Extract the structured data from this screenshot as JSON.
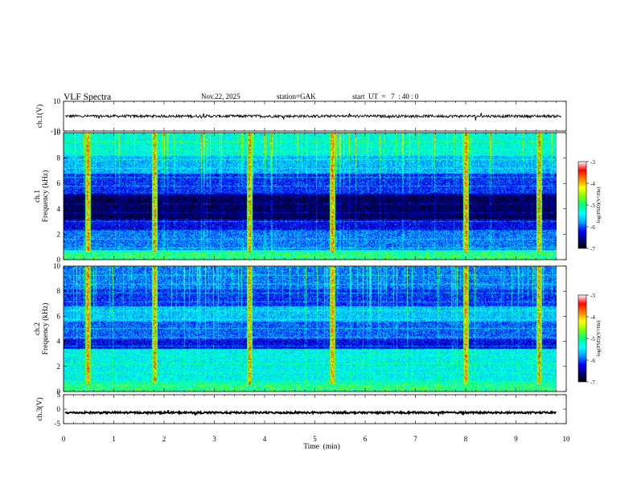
{
  "header": {
    "title": "VLF  Spectra",
    "date": "Nov.22, 2025",
    "station": "station=GAK",
    "start_ut": "start  UT  =   7  : 40 : 0"
  },
  "chart_data": [
    {
      "type": "line",
      "name": "ch1-waveform",
      "ylabel": "ch.1(V)",
      "ylim": [
        -10,
        10
      ],
      "yticks": [
        "10",
        "-10"
      ],
      "x_range_min": [
        0,
        10
      ],
      "baseline": 0,
      "color": "#000000"
    },
    {
      "type": "heatmap",
      "name": "ch1-spectrogram",
      "ylabel": "ch.1\nFrequency  (kHz)",
      "ylim": [
        0,
        10
      ],
      "yticks": [
        "0",
        "2",
        "4",
        "6",
        "8",
        "10"
      ],
      "x_range_min": [
        0,
        9.8
      ],
      "colorbar": {
        "label": "log(PSD)(V²/Hz)",
        "range": [
          -7,
          -3
        ],
        "ticks": [
          "-3",
          "-4",
          "-5",
          "-6",
          "-7"
        ]
      },
      "events_min": [
        0.48,
        1.8,
        3.7,
        5.35,
        8.0,
        9.45
      ]
    },
    {
      "type": "heatmap",
      "name": "ch2-spectrogram",
      "ylabel": "ch.2\nFrequency  (kHz)",
      "ylim": [
        0,
        10
      ],
      "yticks": [
        "0",
        "2",
        "4",
        "6",
        "8",
        "10"
      ],
      "x_range_min": [
        0,
        9.8
      ],
      "colorbar": {
        "label": "log(PSD)(V²/Hz)",
        "range": [
          -7,
          -3
        ],
        "ticks": [
          "-3",
          "-4",
          "-5",
          "-6",
          "-7"
        ]
      },
      "events_min": [
        0.48,
        1.8,
        3.7,
        5.35,
        8.0,
        9.45
      ]
    },
    {
      "type": "line",
      "name": "ch3-waveform",
      "ylabel": "ch.3(V)",
      "ylim": [
        -5,
        5
      ],
      "yticks": [
        "5",
        "0",
        "-5"
      ],
      "x_range_min": [
        0,
        9.8
      ],
      "baseline": -1.2,
      "color": "#000000"
    }
  ],
  "x_axis": {
    "label": "Time  (min)",
    "range": [
      0,
      10
    ],
    "ticks": [
      "0",
      "1",
      "2",
      "3",
      "4",
      "5",
      "6",
      "7",
      "8",
      "9",
      "10"
    ]
  },
  "colormap": [
    "#000000",
    "#000080",
    "#0000ff",
    "#00a0ff",
    "#00ffff",
    "#00ff80",
    "#80ff00",
    "#ffff00",
    "#ff8000",
    "#ff0000",
    "#ffffff"
  ]
}
